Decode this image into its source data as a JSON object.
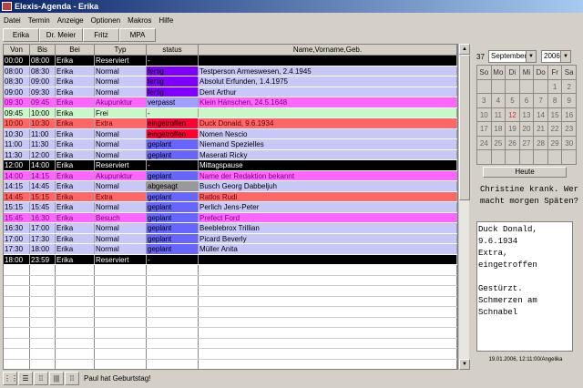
{
  "window": {
    "title": "Elexis-Agenda - Erika"
  },
  "menu": [
    "Datei",
    "Termin",
    "Anzeige",
    "Optionen",
    "Makros",
    "Hilfe"
  ],
  "tabs": [
    "Erika",
    "Dr. Meier",
    "Fritz",
    "MPA"
  ],
  "table": {
    "columns": [
      "Von",
      "Bis",
      "Bei",
      "Typ",
      "status",
      "Name,Vorname,Geb."
    ],
    "rows": [
      [
        "00:00",
        "08:00",
        "Erika",
        "Reserviert",
        "-",
        ""
      ],
      [
        "08:00",
        "08:30",
        "Erika",
        "Normal",
        "fertig",
        "Testperson Armeswesen, 2.4.1945"
      ],
      [
        "08:30",
        "09:00",
        "Erika",
        "Normal",
        "fertig",
        "Absolut Erfunden, 1.4.1975"
      ],
      [
        "09:00",
        "09:30",
        "Erika",
        "Normal",
        "fertig",
        "Dent Arthur"
      ],
      [
        "09:30",
        "09:45",
        "Erika",
        "Akupunktur",
        "verpasst",
        "Klein Hänschen, 24.5.1648"
      ],
      [
        "09:45",
        "10:00",
        "Erika",
        "Frei",
        "-",
        ""
      ],
      [
        "10:00",
        "10:30",
        "Erika",
        "Extra",
        "eingetroffen",
        "Duck Donald, 9.6.1934"
      ],
      [
        "10:30",
        "11:00",
        "Erika",
        "Normal",
        "eingetroffen",
        "Nomen Nescio"
      ],
      [
        "11:00",
        "11:30",
        "Erika",
        "Normal",
        "geplant",
        "Niemand Spezielles"
      ],
      [
        "11:30",
        "12:00",
        "Erika",
        "Normal",
        "geplant",
        "Maserati Ricky"
      ],
      [
        "12:00",
        "14:00",
        "Erika",
        "Reserviert",
        "-",
        "Mittagspause"
      ],
      [
        "14:00",
        "14:15",
        "Erika",
        "Akupunktur",
        "geplant",
        "Name der Redaktion bekannt"
      ],
      [
        "14:15",
        "14:45",
        "Erika",
        "Normal",
        "abgesagt",
        "Busch Georg Dabbeljuh"
      ],
      [
        "14:45",
        "15:15",
        "Erika",
        "Extra",
        "geplant",
        "Ratlos Rudi"
      ],
      [
        "15:15",
        "15:45",
        "Erika",
        "Normal",
        "geplant",
        "Perlich Jens-Peter"
      ],
      [
        "15:45",
        "16:30",
        "Erika",
        "Besuch",
        "geplant",
        "Prefect Ford"
      ],
      [
        "16:30",
        "17:00",
        "Erika",
        "Normal",
        "geplant",
        "Beeblebrox Trillian"
      ],
      [
        "17:00",
        "17:30",
        "Erika",
        "Normal",
        "geplant",
        "Picard Beverly"
      ],
      [
        "17:30",
        "18:00",
        "Erika",
        "Normal",
        "geplant",
        "Müller Anita"
      ],
      [
        "18:00",
        "23:59",
        "Erika",
        "Reserviert",
        "-",
        ""
      ]
    ]
  },
  "type_colors": {
    "Reserviert": "#000000",
    "Normal": "#c8c8f8",
    "Akupunktur": "#ff66ff",
    "Frei": "#c8f8c8",
    "Extra": "#ff6666",
    "Besuch": "#ff66ff"
  },
  "status_colors": {
    "fertig": "#8000ff",
    "verpasst": "#a0a0ff",
    "eingetroffen": "#ff0033",
    "geplant": "#6666ff",
    "abgesagt": "#999999"
  },
  "status_message": "Paul hat Geburtstag!",
  "calendar": {
    "week": "37",
    "month": "September",
    "year": "2006",
    "weekdays": [
      "So",
      "Mo",
      "Di",
      "Mi",
      "Do",
      "Fr",
      "Sa"
    ],
    "days": [
      "",
      "",
      "",
      "",
      "",
      "1",
      "2",
      "3",
      "4",
      "5",
      "6",
      "7",
      "8",
      "9",
      "10",
      "11",
      "12",
      "13",
      "14",
      "15",
      "16",
      "17",
      "18",
      "19",
      "20",
      "21",
      "22",
      "23",
      "24",
      "25",
      "26",
      "27",
      "28",
      "29",
      "30",
      "",
      "",
      "",
      "",
      "",
      "",
      ""
    ],
    "selected": "12",
    "today_label": "Heute"
  },
  "note": "Christine krank. Wer macht morgen Späten?",
  "memo": "Duck Donald,\n9.6.1934\nExtra,\neingetroffen\n\nGestürzt.\nSchmerzen am\nSchnabel",
  "memo_footer": "19.01.2006, 12:11:00/Angelika"
}
